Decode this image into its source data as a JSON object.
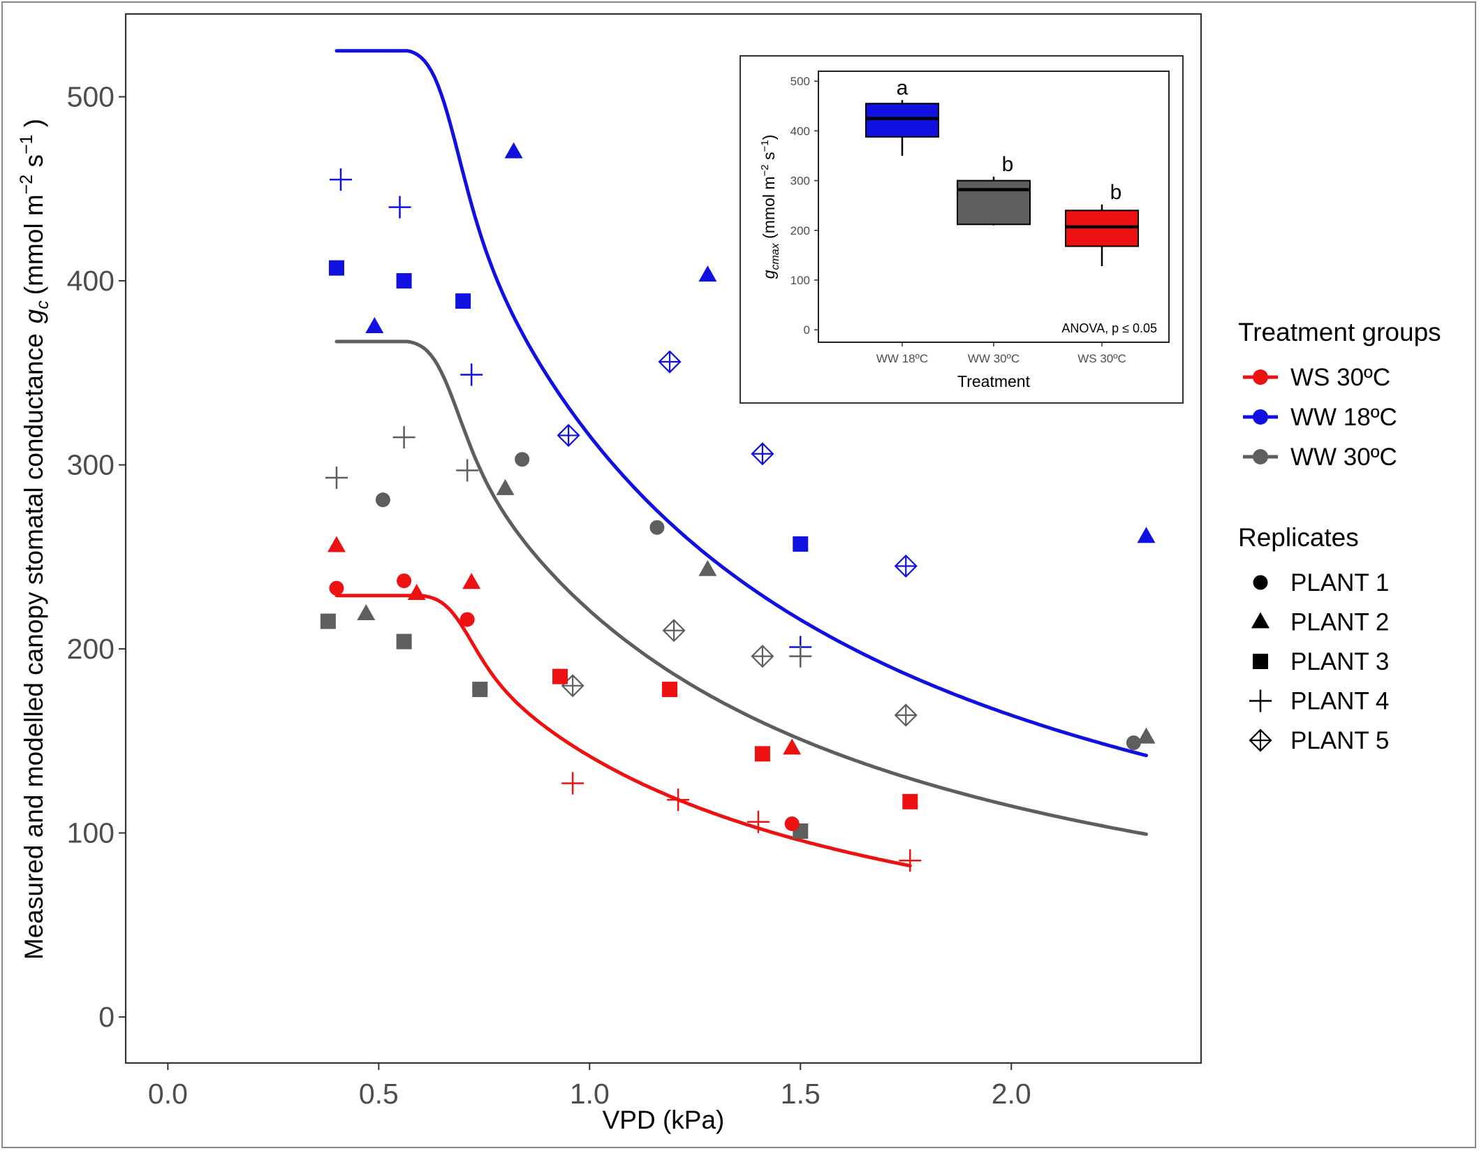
{
  "chart_data": [
    {
      "type": "scatter",
      "title": "",
      "xlabel": "VPD (kPa)",
      "ylabel": "Measured and modelled canopy stomatal conductance",
      "ylabel_symbol": "g",
      "ylabel_symbol_sub": "c",
      "ylabel_unit_open": "(mmol m",
      "ylabel_unit_exp1": "−2",
      "ylabel_unit_mid": " s",
      "ylabel_unit_exp2": "−1",
      "ylabel_unit_close": " )",
      "xlim": [
        -0.1,
        2.45
      ],
      "ylim": [
        -25,
        545
      ],
      "x_ticks": [
        "0.0",
        "0.5",
        "1.0",
        "1.5",
        "2.0"
      ],
      "x_tick_values": [
        0.0,
        0.5,
        1.0,
        1.5,
        2.0
      ],
      "y_ticks": [
        "0",
        "100",
        "200",
        "300",
        "400",
        "500"
      ],
      "y_tick_values": [
        0,
        100,
        200,
        300,
        400,
        500
      ],
      "grid": false,
      "legend_placement": "right",
      "treatment_legend": {
        "title": "Treatment groups",
        "entries": [
          {
            "label": "WS 30ºC",
            "color": "#ee1111"
          },
          {
            "label": "WW 18ºC",
            "color": "#1010e0"
          },
          {
            "label": "WW 30ºC",
            "color": "#5e5e5e"
          }
        ]
      },
      "replicate_legend": {
        "title": "Replicates",
        "entries": [
          {
            "label": "PLANT 1",
            "shape": "circle"
          },
          {
            "label": "PLANT 2",
            "shape": "triangle"
          },
          {
            "label": "PLANT 3",
            "shape": "square"
          },
          {
            "label": "PLANT 4",
            "shape": "plus"
          },
          {
            "label": "PLANT 5",
            "shape": "diamond-plus"
          }
        ]
      },
      "curves": [
        {
          "group": "WW 18ºC",
          "color": "#1010e0",
          "plateau": 525,
          "vpd_break": 0.57,
          "k": 0.7,
          "x_start": 0.4,
          "x_end": 2.32
        },
        {
          "group": "WW 30ºC",
          "color": "#5e5e5e",
          "plateau": 367,
          "vpd_break": 0.57,
          "k": 0.7,
          "x_start": 0.4,
          "x_end": 2.32
        },
        {
          "group": "WS 30ºC",
          "color": "#ee1111",
          "plateau": 229,
          "vpd_break": 0.6,
          "k": 0.7,
          "x_start": 0.4,
          "x_end": 1.76
        }
      ],
      "series": [
        {
          "group": "WW 18ºC",
          "color": "#1010e0",
          "points": [
            {
              "x": 0.82,
              "y": 470,
              "shape": "triangle"
            },
            {
              "x": 1.28,
              "y": 403,
              "shape": "triangle"
            },
            {
              "x": 0.49,
              "y": 375,
              "shape": "triangle"
            },
            {
              "x": 2.32,
              "y": 261,
              "shape": "triangle"
            },
            {
              "x": 0.4,
              "y": 407,
              "shape": "square"
            },
            {
              "x": 0.56,
              "y": 400,
              "shape": "square"
            },
            {
              "x": 0.7,
              "y": 389,
              "shape": "square"
            },
            {
              "x": 1.5,
              "y": 257,
              "shape": "square"
            },
            {
              "x": 0.41,
              "y": 455,
              "shape": "plus"
            },
            {
              "x": 0.55,
              "y": 440,
              "shape": "plus"
            },
            {
              "x": 0.72,
              "y": 349,
              "shape": "plus"
            },
            {
              "x": 1.5,
              "y": 201,
              "shape": "plus"
            },
            {
              "x": 0.95,
              "y": 316,
              "shape": "diamond-plus"
            },
            {
              "x": 1.19,
              "y": 356,
              "shape": "diamond-plus"
            },
            {
              "x": 1.41,
              "y": 306,
              "shape": "diamond-plus"
            },
            {
              "x": 1.75,
              "y": 245,
              "shape": "diamond-plus"
            }
          ]
        },
        {
          "group": "WW 30ºC",
          "color": "#5e5e5e",
          "points": [
            {
              "x": 0.51,
              "y": 281,
              "shape": "circle"
            },
            {
              "x": 0.84,
              "y": 303,
              "shape": "circle"
            },
            {
              "x": 1.16,
              "y": 266,
              "shape": "circle"
            },
            {
              "x": 2.29,
              "y": 149,
              "shape": "circle"
            },
            {
              "x": 0.47,
              "y": 219,
              "shape": "triangle"
            },
            {
              "x": 0.8,
              "y": 287,
              "shape": "triangle"
            },
            {
              "x": 1.28,
              "y": 243,
              "shape": "triangle"
            },
            {
              "x": 2.32,
              "y": 152,
              "shape": "triangle"
            },
            {
              "x": 0.38,
              "y": 215,
              "shape": "square"
            },
            {
              "x": 0.56,
              "y": 204,
              "shape": "square"
            },
            {
              "x": 0.74,
              "y": 178,
              "shape": "square"
            },
            {
              "x": 1.5,
              "y": 101,
              "shape": "square"
            },
            {
              "x": 0.4,
              "y": 293,
              "shape": "plus"
            },
            {
              "x": 0.56,
              "y": 315,
              "shape": "plus"
            },
            {
              "x": 0.71,
              "y": 297,
              "shape": "plus"
            },
            {
              "x": 1.5,
              "y": 196,
              "shape": "plus"
            },
            {
              "x": 0.96,
              "y": 180,
              "shape": "diamond-plus"
            },
            {
              "x": 1.2,
              "y": 210,
              "shape": "diamond-plus"
            },
            {
              "x": 1.41,
              "y": 196,
              "shape": "diamond-plus"
            },
            {
              "x": 1.75,
              "y": 164,
              "shape": "diamond-plus"
            }
          ]
        },
        {
          "group": "WS 30ºC",
          "color": "#ee1111",
          "points": [
            {
              "x": 0.4,
              "y": 233,
              "shape": "circle"
            },
            {
              "x": 0.56,
              "y": 237,
              "shape": "circle"
            },
            {
              "x": 0.71,
              "y": 216,
              "shape": "circle"
            },
            {
              "x": 1.48,
              "y": 105,
              "shape": "circle"
            },
            {
              "x": 0.4,
              "y": 256,
              "shape": "triangle"
            },
            {
              "x": 0.59,
              "y": 230,
              "shape": "triangle"
            },
            {
              "x": 0.72,
              "y": 236,
              "shape": "triangle"
            },
            {
              "x": 1.48,
              "y": 146,
              "shape": "triangle"
            },
            {
              "x": 0.93,
              "y": 185,
              "shape": "square"
            },
            {
              "x": 1.19,
              "y": 178,
              "shape": "square"
            },
            {
              "x": 1.41,
              "y": 143,
              "shape": "square"
            },
            {
              "x": 1.76,
              "y": 117,
              "shape": "square"
            },
            {
              "x": 0.96,
              "y": 127,
              "shape": "plus"
            },
            {
              "x": 1.21,
              "y": 118,
              "shape": "plus"
            },
            {
              "x": 1.4,
              "y": 106,
              "shape": "plus"
            },
            {
              "x": 1.76,
              "y": 85,
              "shape": "plus"
            }
          ]
        }
      ]
    },
    {
      "type": "box",
      "title": "",
      "xlabel": "Treatment",
      "ylabel_symbol": "g",
      "ylabel_symbol_sub": "cmax",
      "ylabel_unit_open": " (mmol m",
      "ylabel_unit_exp1": "−2",
      "ylabel_unit_mid": " s",
      "ylabel_unit_exp2": "−1",
      "ylabel_unit_close": ")",
      "ylim": [
        -25,
        520
      ],
      "y_ticks": [
        "0",
        "100",
        "200",
        "300",
        "400",
        "500"
      ],
      "y_tick_values": [
        0,
        100,
        200,
        300,
        400,
        500
      ],
      "categories": [
        "WW 18ºC",
        "WW 30ºC",
        "WS 30ºC"
      ],
      "annotation": "ANOVA, p ≤ 0.05",
      "boxes": [
        {
          "category": "WW 18ºC",
          "color": "#1010e0",
          "min": 350,
          "q1": 388,
          "median": 425,
          "q3": 455,
          "max": 462,
          "letter": "a"
        },
        {
          "category": "WW 30ºC",
          "color": "#5e5e5e",
          "min": 210,
          "q1": 212,
          "median": 282,
          "q3": 300,
          "max": 308,
          "letter": "b"
        },
        {
          "category": "WS 30ºC",
          "color": "#ee1111",
          "min": 128,
          "q1": 168,
          "median": 207,
          "q3": 240,
          "max": 252,
          "letter": "b"
        }
      ]
    }
  ]
}
